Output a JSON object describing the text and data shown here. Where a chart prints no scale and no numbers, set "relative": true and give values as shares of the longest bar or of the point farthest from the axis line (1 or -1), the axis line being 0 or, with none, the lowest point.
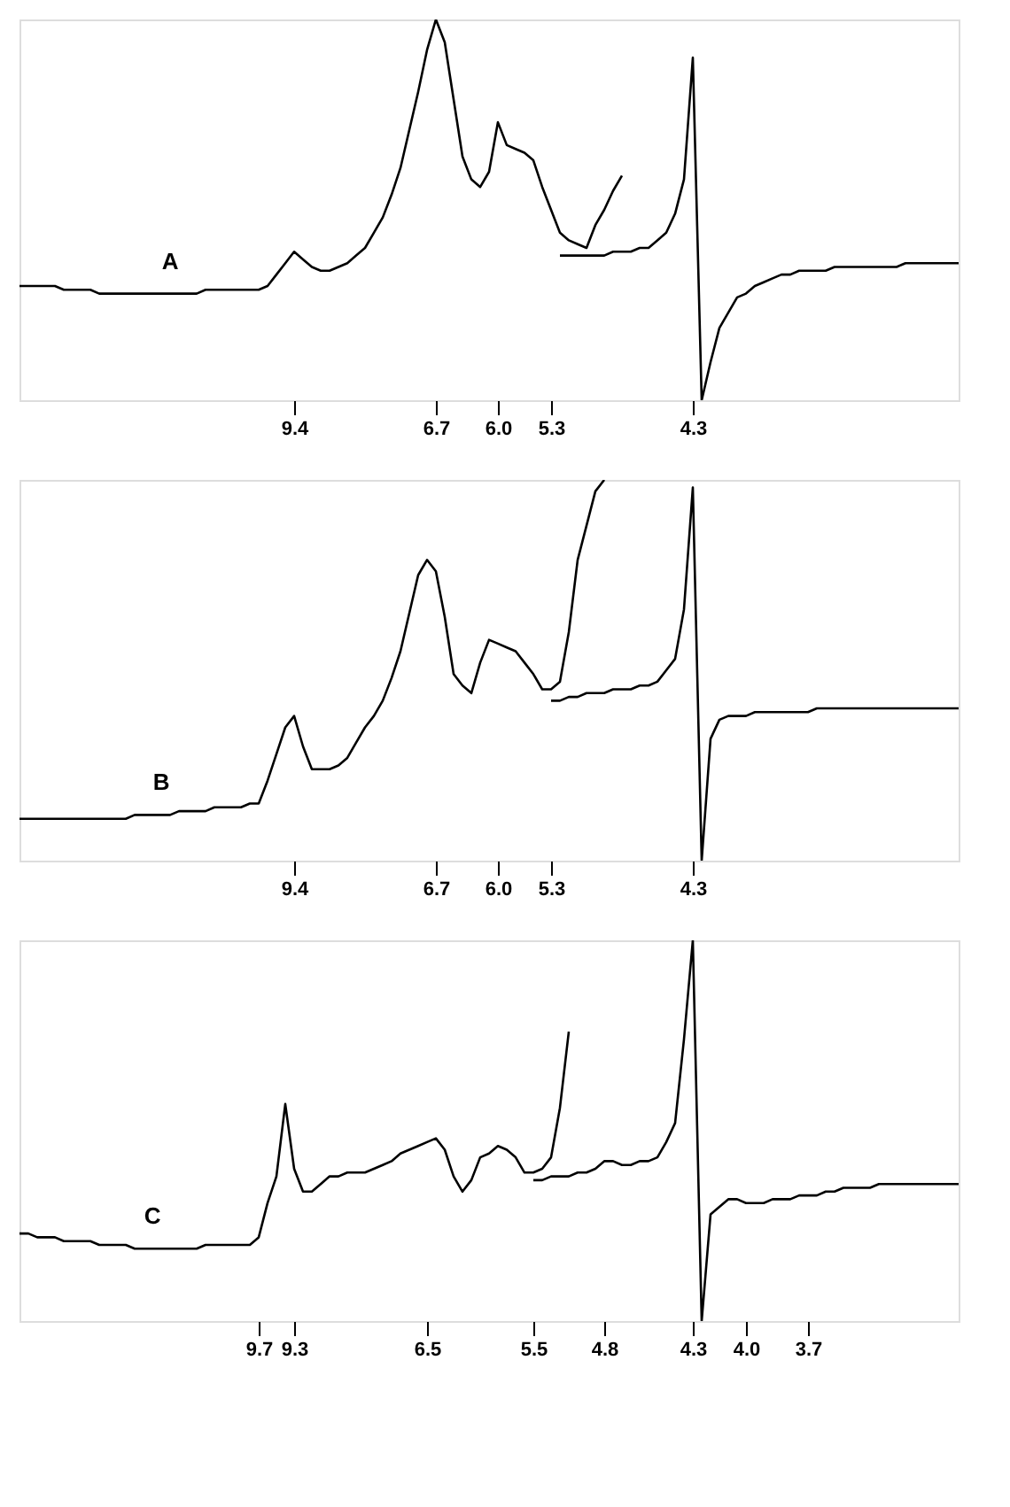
{
  "chart_data": [
    {
      "type": "line",
      "relative": true,
      "tick_labels": "x",
      "categories": [
        null,
        null,
        null,
        null,
        null,
        null,
        null,
        null,
        null,
        null,
        null,
        null,
        null,
        null,
        null,
        null,
        null,
        null,
        null,
        null,
        null,
        null,
        null,
        null,
        null,
        null,
        null,
        null,
        null,
        null,
        null,
        "9.4",
        null,
        null,
        null,
        null,
        null,
        null,
        null,
        null,
        null,
        null,
        null,
        null,
        null,
        null,
        null,
        "6.7",
        null,
        null,
        null,
        null,
        null,
        null,
        "6.0",
        null,
        null,
        null,
        null,
        null,
        "5.3",
        null,
        null,
        null,
        null,
        null,
        null,
        null,
        null,
        null,
        null,
        null,
        null,
        null,
        null,
        null,
        "4.3",
        null,
        null,
        null,
        null,
        null,
        null,
        null,
        null,
        null,
        null,
        null,
        null,
        null,
        null,
        null,
        null,
        null,
        null,
        null,
        null,
        null,
        null,
        null,
        null,
        null,
        null,
        null,
        null,
        null,
        null
      ],
      "series": [
        {
          "name": "A",
          "color": "#000000",
          "values": [
            0.3,
            0.3,
            0.3,
            0.3,
            0.3,
            0.29,
            0.29,
            0.29,
            0.29,
            0.28,
            0.28,
            0.28,
            0.28,
            0.28,
            0.28,
            0.28,
            0.28,
            0.28,
            0.28,
            0.28,
            0.28,
            0.29,
            0.29,
            0.29,
            0.29,
            0.29,
            0.29,
            0.29,
            0.3,
            0.33,
            0.36,
            0.39,
            0.37,
            0.35,
            0.34,
            0.34,
            0.35,
            0.36,
            0.38,
            0.4,
            0.44,
            0.48,
            0.54,
            0.61,
            0.71,
            0.81,
            0.92,
            1.0,
            0.94,
            0.79,
            0.64,
            0.58,
            0.56,
            0.6,
            0.73,
            0.67,
            0.66,
            0.65,
            0.63,
            0.56,
            0.5,
            0.44,
            0.42,
            0.41,
            0.4,
            0.46,
            0.5,
            0.55,
            0.59,
            null,
            null,
            null,
            null,
            null,
            null,
            null,
            null,
            null,
            null,
            null,
            null,
            null,
            null,
            null,
            null,
            null,
            null,
            null,
            null,
            null,
            null,
            null,
            null,
            null,
            null,
            null,
            null,
            null,
            null,
            null,
            null,
            null,
            null,
            null,
            null,
            null,
            null
          ]
        },
        {
          "color": "#000000",
          "values": [
            null,
            null,
            null,
            null,
            null,
            null,
            null,
            null,
            null,
            null,
            null,
            null,
            null,
            null,
            null,
            null,
            null,
            null,
            null,
            null,
            null,
            null,
            null,
            null,
            null,
            null,
            null,
            null,
            null,
            null,
            null,
            null,
            null,
            null,
            null,
            null,
            null,
            null,
            null,
            null,
            null,
            null,
            null,
            null,
            null,
            null,
            null,
            null,
            null,
            null,
            null,
            null,
            null,
            null,
            null,
            null,
            null,
            null,
            null,
            null,
            null,
            0.38,
            0.38,
            0.38,
            0.38,
            0.38,
            0.38,
            0.39,
            0.39,
            0.39,
            0.4,
            0.4,
            0.42,
            0.44,
            0.49,
            0.58,
            0.9,
            0.0,
            0.1,
            0.19,
            0.23,
            0.27,
            0.28,
            0.3,
            0.31,
            0.32,
            0.33,
            0.33,
            0.34,
            0.34,
            0.34,
            0.34,
            0.35,
            0.35,
            0.35,
            0.35,
            0.35,
            0.35,
            0.35,
            0.35,
            0.36,
            0.36,
            0.36,
            0.36,
            0.36,
            0.36,
            0.36
          ]
        }
      ]
    },
    {
      "type": "line",
      "relative": true,
      "tick_labels": "x",
      "categories": [
        null,
        null,
        null,
        null,
        null,
        null,
        null,
        null,
        null,
        null,
        null,
        null,
        null,
        null,
        null,
        null,
        null,
        null,
        null,
        null,
        null,
        null,
        null,
        null,
        null,
        null,
        null,
        null,
        null,
        null,
        null,
        "9.4",
        null,
        null,
        null,
        null,
        null,
        null,
        null,
        null,
        null,
        null,
        null,
        null,
        null,
        null,
        null,
        "6.7",
        null,
        null,
        null,
        null,
        null,
        null,
        "6.0",
        null,
        null,
        null,
        null,
        null,
        "5.3",
        null,
        null,
        null,
        null,
        null,
        null,
        null,
        null,
        null,
        null,
        null,
        null,
        null,
        null,
        null,
        "4.3",
        null,
        null,
        null,
        null,
        null,
        null,
        null,
        null,
        null,
        null,
        null,
        null,
        null,
        null,
        null,
        null,
        null,
        null,
        null,
        null,
        null,
        null,
        null,
        null,
        null,
        null,
        null,
        null,
        null,
        null
      ],
      "series": [
        {
          "name": "B",
          "color": "#000000",
          "values": [
            0.11,
            0.11,
            0.11,
            0.11,
            0.11,
            0.11,
            0.11,
            0.11,
            0.11,
            0.11,
            0.11,
            0.11,
            0.11,
            0.12,
            0.12,
            0.12,
            0.12,
            0.12,
            0.13,
            0.13,
            0.13,
            0.13,
            0.14,
            0.14,
            0.14,
            0.14,
            0.15,
            0.15,
            0.21,
            0.28,
            0.35,
            0.38,
            0.3,
            0.24,
            0.24,
            0.24,
            0.25,
            0.27,
            0.31,
            0.35,
            0.38,
            0.42,
            0.48,
            0.55,
            0.65,
            0.75,
            0.79,
            0.76,
            0.64,
            0.49,
            0.46,
            0.44,
            0.52,
            0.58,
            0.57,
            0.56,
            0.55,
            0.52,
            0.49,
            0.45,
            0.45,
            0.47,
            0.6,
            0.79,
            0.88,
            0.97,
            1.0,
            null,
            null,
            null,
            null,
            null,
            null,
            null,
            null,
            null,
            null,
            null,
            null,
            null,
            null,
            null,
            null,
            null,
            null,
            null,
            null,
            null,
            null,
            null,
            null,
            null,
            null,
            null,
            null,
            null,
            null,
            null,
            null,
            null,
            null,
            null,
            null,
            null,
            null,
            null,
            null
          ]
        },
        {
          "color": "#000000",
          "values": [
            null,
            null,
            null,
            null,
            null,
            null,
            null,
            null,
            null,
            null,
            null,
            null,
            null,
            null,
            null,
            null,
            null,
            null,
            null,
            null,
            null,
            null,
            null,
            null,
            null,
            null,
            null,
            null,
            null,
            null,
            null,
            null,
            null,
            null,
            null,
            null,
            null,
            null,
            null,
            null,
            null,
            null,
            null,
            null,
            null,
            null,
            null,
            null,
            null,
            null,
            null,
            null,
            null,
            null,
            null,
            null,
            null,
            null,
            null,
            null,
            0.42,
            0.42,
            0.43,
            0.43,
            0.44,
            0.44,
            0.44,
            0.45,
            0.45,
            0.45,
            0.46,
            0.46,
            0.47,
            0.5,
            0.53,
            0.66,
            0.98,
            0.0,
            0.32,
            0.37,
            0.38,
            0.38,
            0.38,
            0.39,
            0.39,
            0.39,
            0.39,
            0.39,
            0.39,
            0.39,
            0.4,
            0.4,
            0.4,
            0.4,
            0.4,
            0.4,
            0.4,
            0.4,
            0.4,
            0.4,
            0.4,
            0.4,
            0.4,
            0.4,
            0.4,
            0.4,
            0.4
          ]
        }
      ]
    },
    {
      "type": "line",
      "relative": true,
      "tick_labels": "x",
      "categories": [
        null,
        null,
        null,
        null,
        null,
        null,
        null,
        null,
        null,
        null,
        null,
        null,
        null,
        null,
        null,
        null,
        null,
        null,
        null,
        null,
        null,
        null,
        null,
        null,
        null,
        null,
        null,
        "9.7",
        null,
        null,
        null,
        "9.3",
        null,
        null,
        null,
        null,
        null,
        null,
        null,
        null,
        null,
        null,
        null,
        null,
        null,
        null,
        "6.5",
        null,
        null,
        null,
        null,
        null,
        null,
        null,
        null,
        null,
        null,
        null,
        "5.5",
        null,
        null,
        null,
        null,
        null,
        null,
        null,
        "4.8",
        null,
        null,
        null,
        null,
        null,
        null,
        null,
        null,
        null,
        "4.3",
        null,
        null,
        null,
        null,
        null,
        "4.0",
        null,
        null,
        null,
        null,
        null,
        null,
        "3.7",
        null,
        null,
        null,
        null,
        null,
        null,
        null,
        null,
        null,
        null,
        null,
        null,
        null,
        null,
        null,
        null,
        null
      ],
      "series": [
        {
          "name": "C",
          "color": "#000000",
          "values": [
            0.23,
            0.23,
            0.22,
            0.22,
            0.22,
            0.21,
            0.21,
            0.21,
            0.21,
            0.2,
            0.2,
            0.2,
            0.2,
            0.19,
            0.19,
            0.19,
            0.19,
            0.19,
            0.19,
            0.19,
            0.19,
            0.2,
            0.2,
            0.2,
            0.2,
            0.2,
            0.2,
            0.22,
            0.31,
            0.38,
            0.57,
            0.4,
            0.34,
            0.34,
            0.36,
            0.38,
            0.38,
            0.39,
            0.39,
            0.39,
            0.4,
            0.41,
            0.42,
            0.44,
            0.45,
            0.46,
            0.47,
            0.48,
            0.45,
            0.38,
            0.34,
            0.37,
            0.43,
            0.44,
            0.46,
            0.45,
            0.43,
            0.39,
            0.39,
            0.4,
            0.43,
            0.56,
            0.76,
            null,
            null,
            null,
            null,
            null,
            null,
            null,
            null,
            null,
            null,
            null,
            null,
            null,
            null,
            null,
            null,
            null,
            null,
            null,
            null,
            null,
            null,
            null,
            null,
            null,
            null,
            null,
            null,
            null,
            null,
            null,
            null,
            null,
            null,
            null,
            null,
            null,
            null,
            null,
            null,
            null,
            null,
            null,
            null
          ]
        },
        {
          "color": "#000000",
          "values": [
            null,
            null,
            null,
            null,
            null,
            null,
            null,
            null,
            null,
            null,
            null,
            null,
            null,
            null,
            null,
            null,
            null,
            null,
            null,
            null,
            null,
            null,
            null,
            null,
            null,
            null,
            null,
            null,
            null,
            null,
            null,
            null,
            null,
            null,
            null,
            null,
            null,
            null,
            null,
            null,
            null,
            null,
            null,
            null,
            null,
            null,
            null,
            null,
            null,
            null,
            null,
            null,
            null,
            null,
            null,
            null,
            null,
            null,
            0.37,
            0.37,
            0.38,
            0.38,
            0.38,
            0.39,
            0.39,
            0.4,
            0.42,
            0.42,
            0.41,
            0.41,
            0.42,
            0.42,
            0.43,
            0.47,
            0.52,
            0.74,
            1.0,
            0.0,
            0.28,
            0.3,
            0.32,
            0.32,
            0.31,
            0.31,
            0.31,
            0.32,
            0.32,
            0.32,
            0.33,
            0.33,
            0.33,
            0.34,
            0.34,
            0.35,
            0.35,
            0.35,
            0.35,
            0.36,
            0.36,
            0.36,
            0.36,
            0.36,
            0.36,
            0.36,
            0.36,
            0.36,
            0.36
          ]
        }
      ]
    }
  ]
}
